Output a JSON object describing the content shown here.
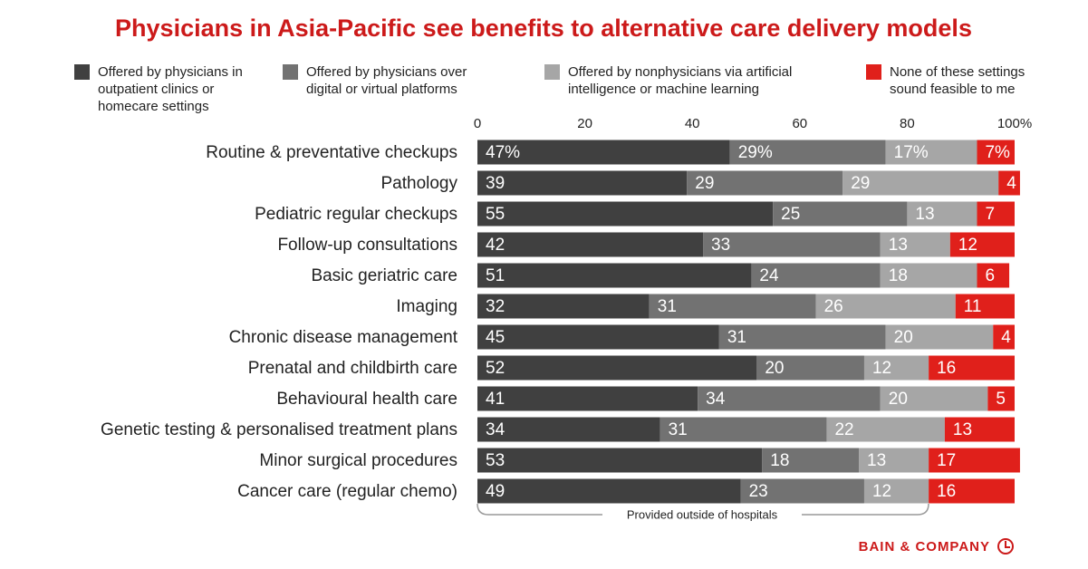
{
  "chart_data": {
    "type": "stacked_bar_horizontal",
    "title": "Physicians in Asia-Pacific see benefits to alternative care delivery models",
    "categories": [
      "Routine & preventative checkups",
      "Pathology",
      "Pediatric regular checkups",
      "Follow-up consultations",
      "Basic geriatric care",
      "Imaging",
      "Chronic disease management",
      "Prenatal and childbirth care",
      "Behavioural health care",
      "Genetic testing & personalised treatment plans",
      "Minor surgical procedures",
      "Cancer care (regular chemo)"
    ],
    "series": [
      {
        "name": "Offered by physicians in outpatient clinics or homecare settings",
        "color": "#404040",
        "values": [
          47,
          39,
          55,
          42,
          51,
          32,
          45,
          52,
          41,
          34,
          53,
          49
        ],
        "value_labels": [
          "47%",
          "39",
          "55",
          "42",
          "51",
          "32",
          "45",
          "52",
          "41",
          "34",
          "53",
          "49"
        ]
      },
      {
        "name": "Offered by physicians over digital or virtual platforms",
        "color": "#727272",
        "values": [
          29,
          29,
          25,
          33,
          24,
          31,
          31,
          20,
          34,
          31,
          18,
          23
        ],
        "value_labels": [
          "29%",
          "29",
          "25",
          "33",
          "24",
          "31",
          "31",
          "20",
          "34",
          "31",
          "18",
          "23"
        ]
      },
      {
        "name": "Offered by nonphysicians via artificial intelligence or machine learning",
        "color": "#a6a6a6",
        "values": [
          17,
          29,
          13,
          13,
          18,
          26,
          20,
          12,
          20,
          22,
          13,
          12
        ],
        "value_labels": [
          "17%",
          "29",
          "13",
          "13",
          "18",
          "26",
          "20",
          "12",
          "20",
          "22",
          "13",
          "12"
        ]
      },
      {
        "name": "None of these settings sound feasible to me",
        "color": "#e0201b",
        "values": [
          7,
          4,
          7,
          12,
          6,
          11,
          4,
          16,
          5,
          13,
          17,
          16
        ],
        "value_labels": [
          "7%",
          "4",
          "7",
          "12",
          "6",
          "11",
          "4",
          "16",
          "5",
          "13",
          "17",
          "16"
        ]
      }
    ],
    "xlim": [
      0,
      100
    ],
    "xticks": [
      0,
      20,
      40,
      60,
      80,
      {
        "value": 100,
        "label": "100%"
      }
    ],
    "annotation": "Provided outside of hospitals",
    "brand": "BAIN & COMPANY"
  }
}
